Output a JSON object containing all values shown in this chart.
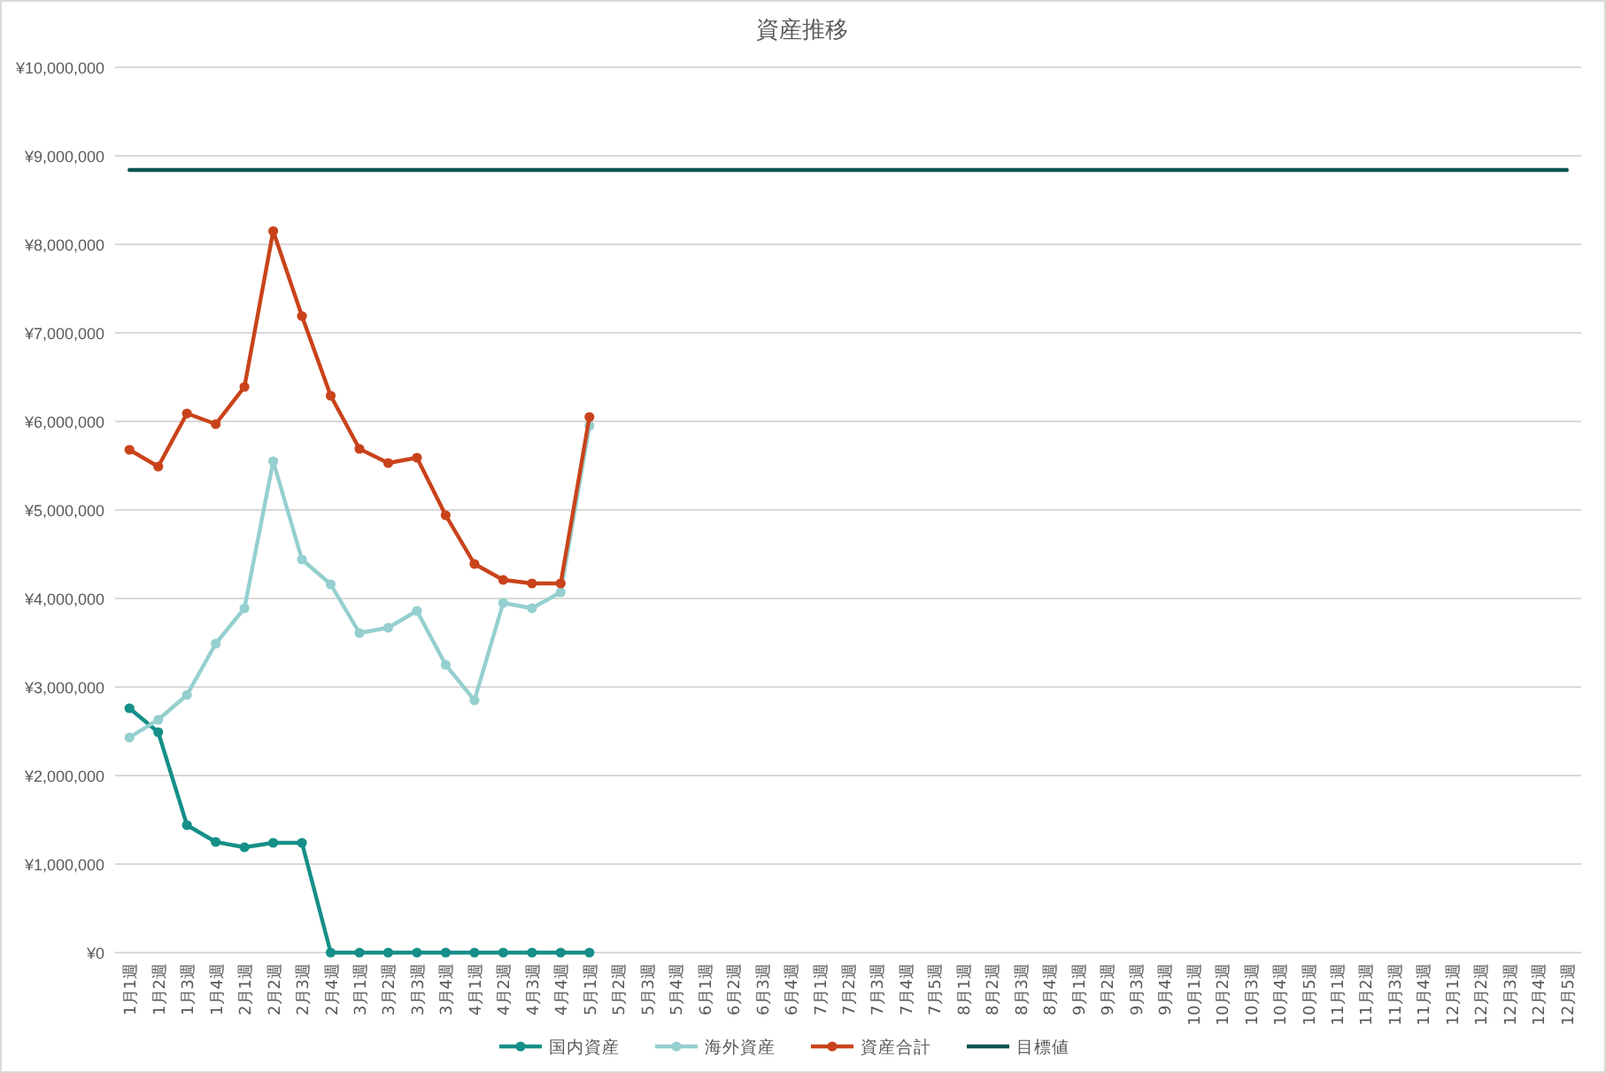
{
  "chart_data": {
    "type": "line",
    "title": "資産推移",
    "categories": [
      "1月1週",
      "1月2週",
      "1月3週",
      "1月4週",
      "2月1週",
      "2月2週",
      "2月3週",
      "2月4週",
      "3月1週",
      "3月2週",
      "3月3週",
      "3月4週",
      "4月1週",
      "4月2週",
      "4月3週",
      "4月4週",
      "5月1週",
      "5月2週",
      "5月3週",
      "5月4週",
      "6月1週",
      "6月2週",
      "6月3週",
      "6月4週",
      "7月1週",
      "7月2週",
      "7月3週",
      "7月4週",
      "7月5週",
      "8月1週",
      "8月2週",
      "8月3週",
      "8月4週",
      "9月1週",
      "9月2週",
      "9月3週",
      "9月4週",
      "10月1週",
      "10月2週",
      "10月3週",
      "10月4週",
      "10月5週",
      "11月1週",
      "11月2週",
      "11月3週",
      "11月4週",
      "12月1週",
      "12月2週",
      "12月3週",
      "12月4週",
      "12月5週"
    ],
    "series": [
      {
        "name": "国内資産",
        "color": "#158f88",
        "marker": "circle",
        "values": [
          2760000,
          2490000,
          1440000,
          1250000,
          1190000,
          1240000,
          1240000,
          0,
          0,
          0,
          0,
          0,
          0,
          0,
          0,
          0,
          0,
          null,
          null,
          null,
          null,
          null,
          null,
          null,
          null,
          null,
          null,
          null,
          null,
          null,
          null,
          null,
          null,
          null,
          null,
          null,
          null,
          null,
          null,
          null,
          null,
          null,
          null,
          null,
          null,
          null,
          null,
          null,
          null,
          null,
          null
        ]
      },
      {
        "name": "海外資産",
        "color": "#95cfcf",
        "marker": "circle",
        "values": [
          2430000,
          2630000,
          2910000,
          3490000,
          3890000,
          5550000,
          4440000,
          4160000,
          3610000,
          3670000,
          3860000,
          3250000,
          2850000,
          3950000,
          3890000,
          4070000,
          5950000,
          null,
          null,
          null,
          null,
          null,
          null,
          null,
          null,
          null,
          null,
          null,
          null,
          null,
          null,
          null,
          null,
          null,
          null,
          null,
          null,
          null,
          null,
          null,
          null,
          null,
          null,
          null,
          null,
          null,
          null,
          null,
          null,
          null,
          null
        ]
      },
      {
        "name": "資産合計",
        "color": "#c9431a",
        "marker": "circle",
        "values": [
          5680000,
          5490000,
          6090000,
          5970000,
          6390000,
          8150000,
          7190000,
          6290000,
          5690000,
          5530000,
          5590000,
          4940000,
          4390000,
          4210000,
          4170000,
          4170000,
          6050000,
          null,
          null,
          null,
          null,
          null,
          null,
          null,
          null,
          null,
          null,
          null,
          null,
          null,
          null,
          null,
          null,
          null,
          null,
          null,
          null,
          null,
          null,
          null,
          null,
          null,
          null,
          null,
          null,
          null,
          null,
          null,
          null,
          null,
          null
        ]
      },
      {
        "name": "目標値",
        "color": "#0f5456",
        "marker": "none",
        "values": [
          8840000,
          8840000,
          8840000,
          8840000,
          8840000,
          8840000,
          8840000,
          8840000,
          8840000,
          8840000,
          8840000,
          8840000,
          8840000,
          8840000,
          8840000,
          8840000,
          8840000,
          8840000,
          8840000,
          8840000,
          8840000,
          8840000,
          8840000,
          8840000,
          8840000,
          8840000,
          8840000,
          8840000,
          8840000,
          8840000,
          8840000,
          8840000,
          8840000,
          8840000,
          8840000,
          8840000,
          8840000,
          8840000,
          8840000,
          8840000,
          8840000,
          8840000,
          8840000,
          8840000,
          8840000,
          8840000,
          8840000,
          8840000,
          8840000,
          8840000,
          8840000
        ]
      }
    ],
    "ylim": [
      0,
      10000000
    ],
    "yticks": [
      {
        "value": 0,
        "label": "¥0"
      },
      {
        "value": 1000000,
        "label": "¥1,000,000"
      },
      {
        "value": 2000000,
        "label": "¥2,000,000"
      },
      {
        "value": 3000000,
        "label": "¥3,000,000"
      },
      {
        "value": 4000000,
        "label": "¥4,000,000"
      },
      {
        "value": 5000000,
        "label": "¥5,000,000"
      },
      {
        "value": 6000000,
        "label": "¥6,000,000"
      },
      {
        "value": 7000000,
        "label": "¥7,000,000"
      },
      {
        "value": 8000000,
        "label": "¥8,000,000"
      },
      {
        "value": 9000000,
        "label": "¥9,000,000"
      },
      {
        "value": 10000000,
        "label": "¥10,000,000"
      }
    ],
    "grid": "y",
    "legend": "bottom"
  }
}
